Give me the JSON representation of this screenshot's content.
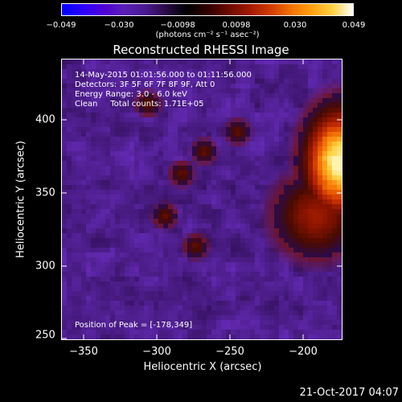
{
  "colorbar": {
    "tick_labels": [
      "−0.049",
      "−0.030",
      "−0.0098",
      "0.0098",
      "0.030",
      "0.049"
    ],
    "units_label": "(photons cm⁻² s⁻¹ asec⁻²)",
    "colormap": [
      "#0000ff",
      "#2a00ff",
      "#4f00d4",
      "#5a1fb8",
      "#4a1a90",
      "#2b0b48",
      "#000000",
      "#300000",
      "#6a0a00",
      "#a01800",
      "#d03a00",
      "#f07000",
      "#ffa010",
      "#ffd040",
      "#ffffff"
    ]
  },
  "title": "Reconstructed RHESSI Image",
  "info": {
    "time_range": "14-May-2015 01:01:56.000 to 01:11:56.000",
    "detectors": "Detectors: 3F 5F 6F 7F 8F 9F, Att 0",
    "energy_range": "Energy Range: 3.0 - 6.0 keV",
    "algorithm": "Clean     Total counts: 1.71E+05",
    "peak": "Position of Peak = [-178,349]"
  },
  "axes": {
    "xlabel": "Heliocentric X (arcsec)",
    "ylabel": "Heliocentric Y (arcsec)",
    "x_tick_labels": [
      "−350",
      "−300",
      "−250",
      "−200"
    ],
    "y_tick_labels": [
      "400",
      "350",
      "300",
      "250"
    ],
    "xlim": [
      -365,
      -172
    ],
    "ylim": [
      247,
      440
    ]
  },
  "timestamp": "21-Oct-2017 04:07"
}
